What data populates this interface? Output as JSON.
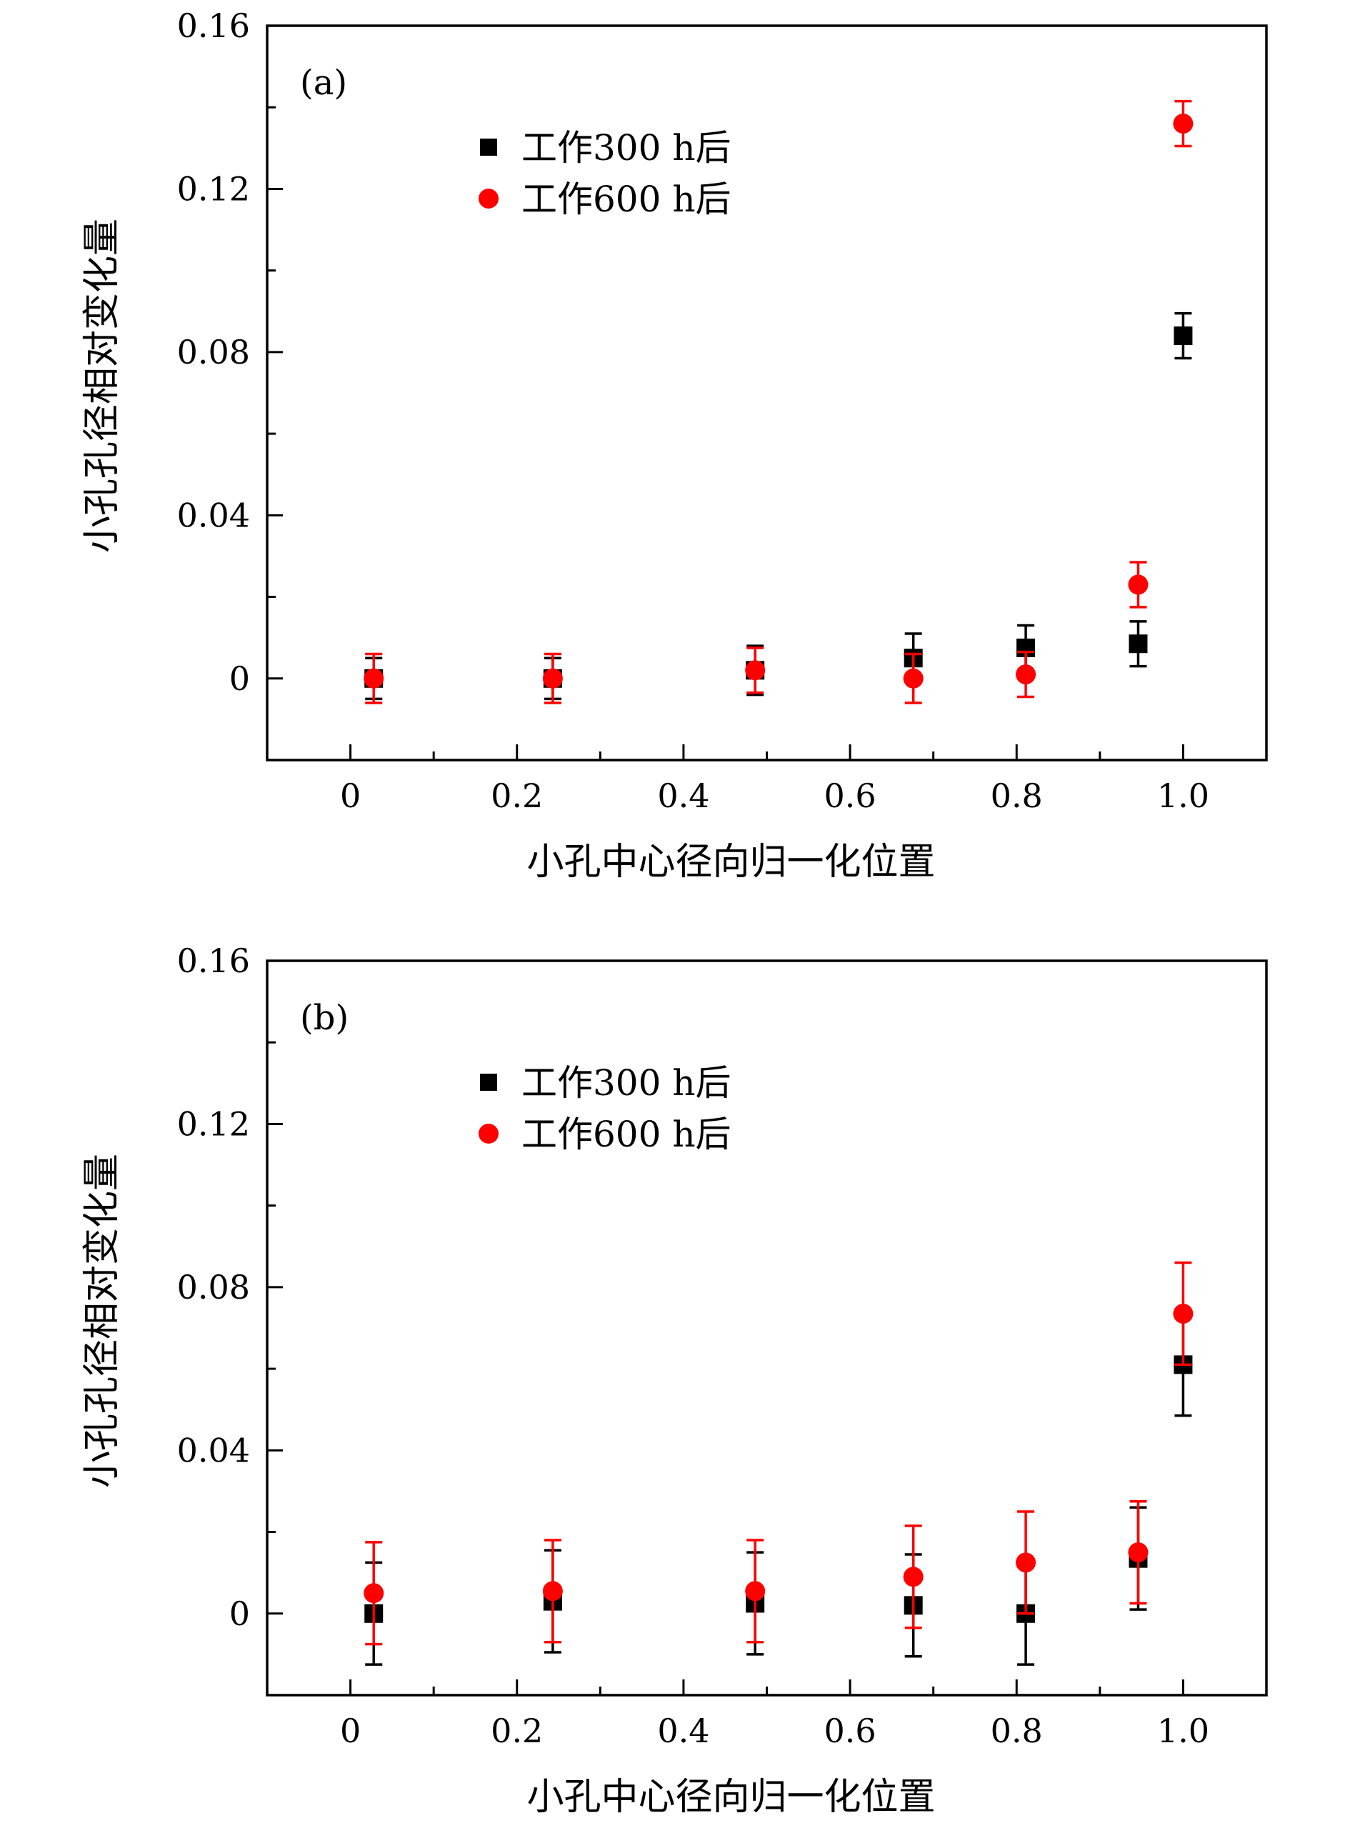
{
  "chart_data": [
    {
      "type": "scatter",
      "panel_label": "(a)",
      "xlabel": "小孔中心径向归一化位置",
      "ylabel": "小孔孔径相对变化量",
      "xlim": [
        -0.1,
        1.1
      ],
      "ylim": [
        -0.02,
        0.16
      ],
      "x_ticks": [
        0,
        0.2,
        0.4,
        0.6,
        0.8,
        1.0
      ],
      "x_tick_labels": [
        "0",
        "0.2",
        "0.4",
        "0.6",
        "0.8",
        "1.0"
      ],
      "y_ticks": [
        0,
        0.04,
        0.08,
        0.12,
        0.16
      ],
      "y_tick_labels": [
        "0",
        "0.04",
        "0.08",
        "0.12",
        "0.16"
      ],
      "grid": false,
      "legend_position": "upper-center-left",
      "series": [
        {
          "name": "工作300 h后",
          "marker": "square",
          "color": "#000000",
          "x": [
            0.028,
            0.243,
            0.486,
            0.676,
            0.811,
            0.946,
            1.0
          ],
          "y": [
            0.0,
            0.0,
            0.002,
            0.005,
            0.0075,
            0.0085,
            0.084
          ],
          "err": [
            0.005,
            0.005,
            0.006,
            0.006,
            0.0055,
            0.0055,
            0.0055
          ]
        },
        {
          "name": "工作600 h后",
          "marker": "circle",
          "color": "#ff0000",
          "x": [
            0.028,
            0.243,
            0.486,
            0.676,
            0.811,
            0.946,
            1.0
          ],
          "y": [
            0.0,
            0.0,
            0.002,
            0.0,
            0.001,
            0.023,
            0.136
          ],
          "err": [
            0.006,
            0.006,
            0.0055,
            0.006,
            0.0055,
            0.0055,
            0.0055
          ]
        }
      ]
    },
    {
      "type": "scatter",
      "panel_label": "(b)",
      "xlabel": "小孔中心径向归一化位置",
      "ylabel": "小孔孔径相对变化量",
      "xlim": [
        -0.1,
        1.1
      ],
      "ylim": [
        -0.02,
        0.16
      ],
      "x_ticks": [
        0,
        0.2,
        0.4,
        0.6,
        0.8,
        1.0
      ],
      "x_tick_labels": [
        "0",
        "0.2",
        "0.4",
        "0.6",
        "0.8",
        "1.0"
      ],
      "y_ticks": [
        0,
        0.04,
        0.08,
        0.12,
        0.16
      ],
      "y_tick_labels": [
        "0",
        "0.04",
        "0.08",
        "0.12",
        "0.16"
      ],
      "grid": false,
      "legend_position": "upper-center-left",
      "series": [
        {
          "name": "工作300 h后",
          "marker": "square",
          "color": "#000000",
          "x": [
            0.028,
            0.243,
            0.486,
            0.676,
            0.811,
            0.946,
            1.0
          ],
          "y": [
            0.0,
            0.003,
            0.0025,
            0.002,
            0.0,
            0.0135,
            0.061
          ],
          "err": [
            0.0125,
            0.0125,
            0.0125,
            0.0125,
            0.0125,
            0.0125,
            0.0125
          ]
        },
        {
          "name": "工作600 h后",
          "marker": "circle",
          "color": "#ff0000",
          "x": [
            0.028,
            0.243,
            0.486,
            0.676,
            0.811,
            0.946,
            1.0
          ],
          "y": [
            0.005,
            0.0055,
            0.0055,
            0.009,
            0.0125,
            0.015,
            0.0735
          ],
          "err": [
            0.0125,
            0.0125,
            0.0125,
            0.0125,
            0.0125,
            0.0125,
            0.0125
          ]
        }
      ]
    }
  ]
}
